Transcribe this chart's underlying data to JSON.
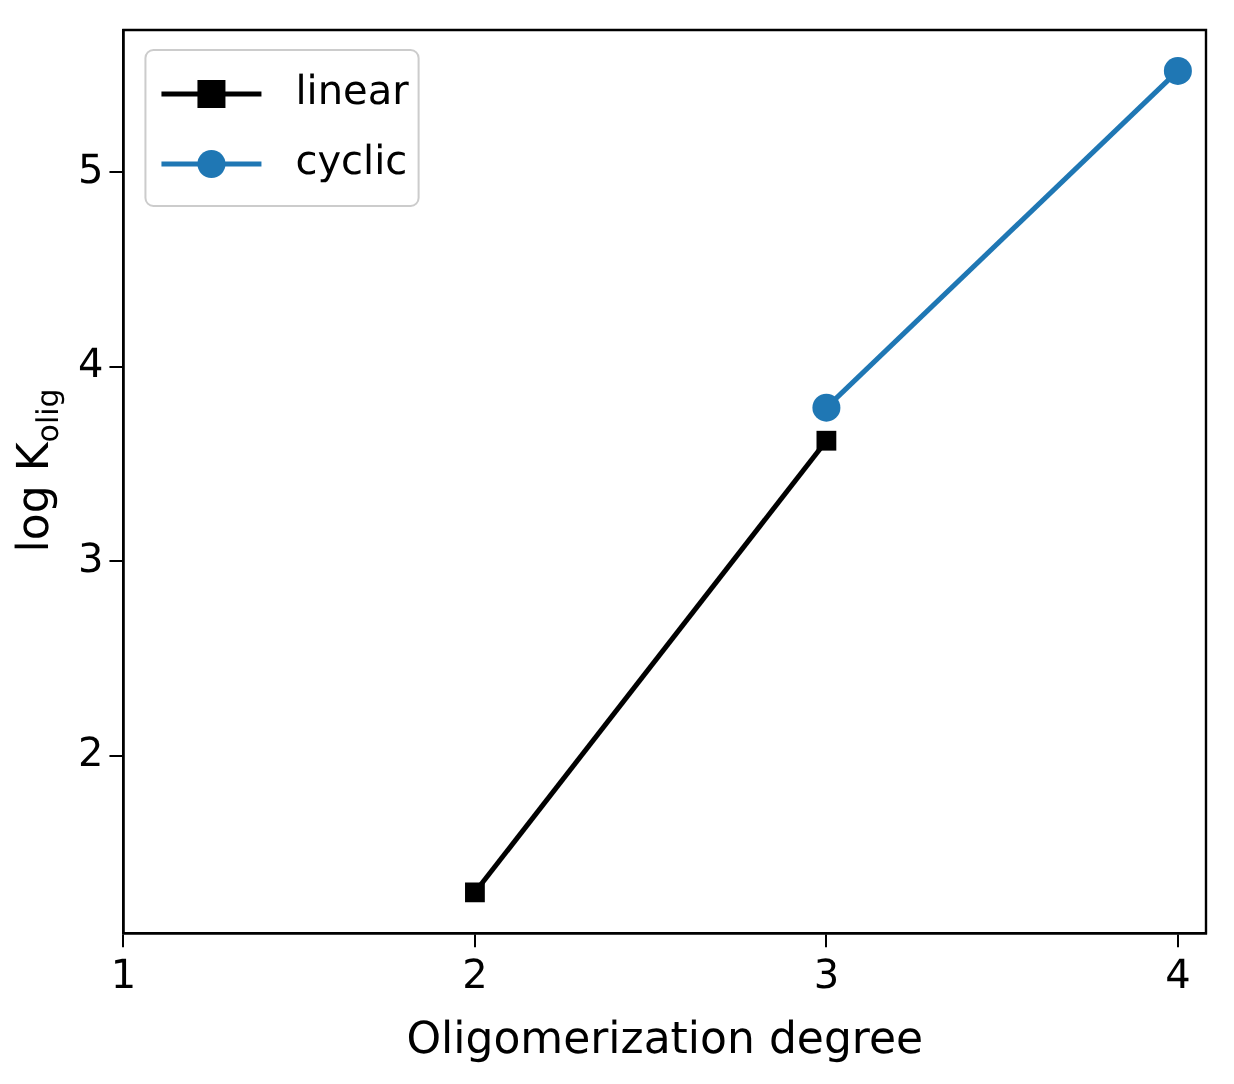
{
  "chart_data": {
    "type": "line",
    "xlabel": "Oligomerization degree",
    "ylabel": "log K$_{olig}$",
    "xlim": [
      1,
      4.08
    ],
    "xticks": [
      1,
      2,
      3,
      4
    ],
    "ylim": [
      1.09,
      5.73
    ],
    "yticks": [
      2,
      3,
      4,
      5
    ],
    "grid": false,
    "legend": "top left",
    "line_style": "solid",
    "series": [
      {
        "name": "linear",
        "color": "#000000",
        "marker": "square",
        "x": [
          2,
          3
        ],
        "values": [
          1.3,
          3.62
        ]
      },
      {
        "name": "cyclic",
        "color": "#1f77b4",
        "marker": "circle",
        "x": [
          3,
          4
        ],
        "values": [
          3.79,
          5.52
        ]
      }
    ]
  }
}
